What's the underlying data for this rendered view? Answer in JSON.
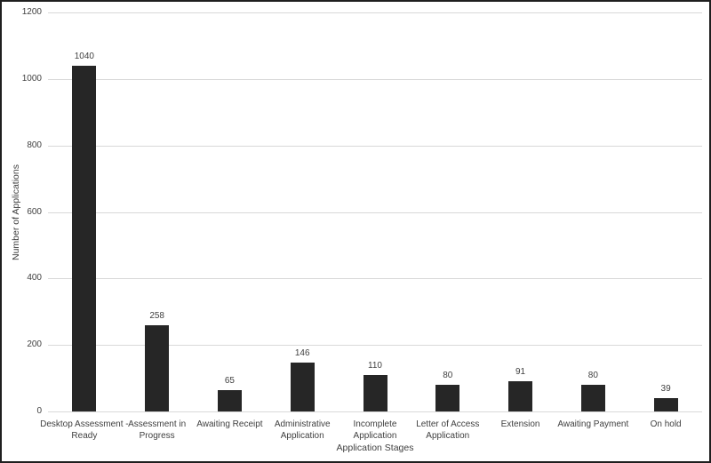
{
  "chart_data": {
    "type": "bar",
    "title": "",
    "xlabel": "Application Stages",
    "ylabel": "Number of Applications",
    "categories": [
      "Desktop Assessment - Ready",
      "Assessment in Progress",
      "Awaiting Receipt",
      "Administrative Application",
      "Incomplete Application",
      "Letter of Access Application",
      "Extension",
      "Awaiting Payment",
      "On hold"
    ],
    "category_label_lines": [
      [
        "Desktop Assessment -",
        "Ready"
      ],
      [
        "Assessment in",
        "Progress"
      ],
      [
        "Awaiting Receipt"
      ],
      [
        "Administrative",
        "Application"
      ],
      [
        "Incomplete",
        "Application"
      ],
      [
        "Letter of Access",
        "Application"
      ],
      [
        "Extension"
      ],
      [
        "Awaiting Payment"
      ],
      [
        "On hold"
      ]
    ],
    "values": [
      1040,
      258,
      65,
      146,
      110,
      80,
      91,
      80,
      39
    ],
    "value_labels": [
      "1040",
      "258",
      "65",
      "146",
      "110",
      "80",
      "91",
      "80",
      "39"
    ],
    "yticks": [
      0,
      200,
      400,
      600,
      800,
      1000,
      1200
    ],
    "ylim": [
      0,
      1200
    ],
    "grid": true,
    "legend": false,
    "colors": {
      "bar": "#262626",
      "gridline": "#d9d9d9",
      "text": "#404040",
      "frame": "#1f1f1f",
      "background": "#ffffff"
    }
  }
}
